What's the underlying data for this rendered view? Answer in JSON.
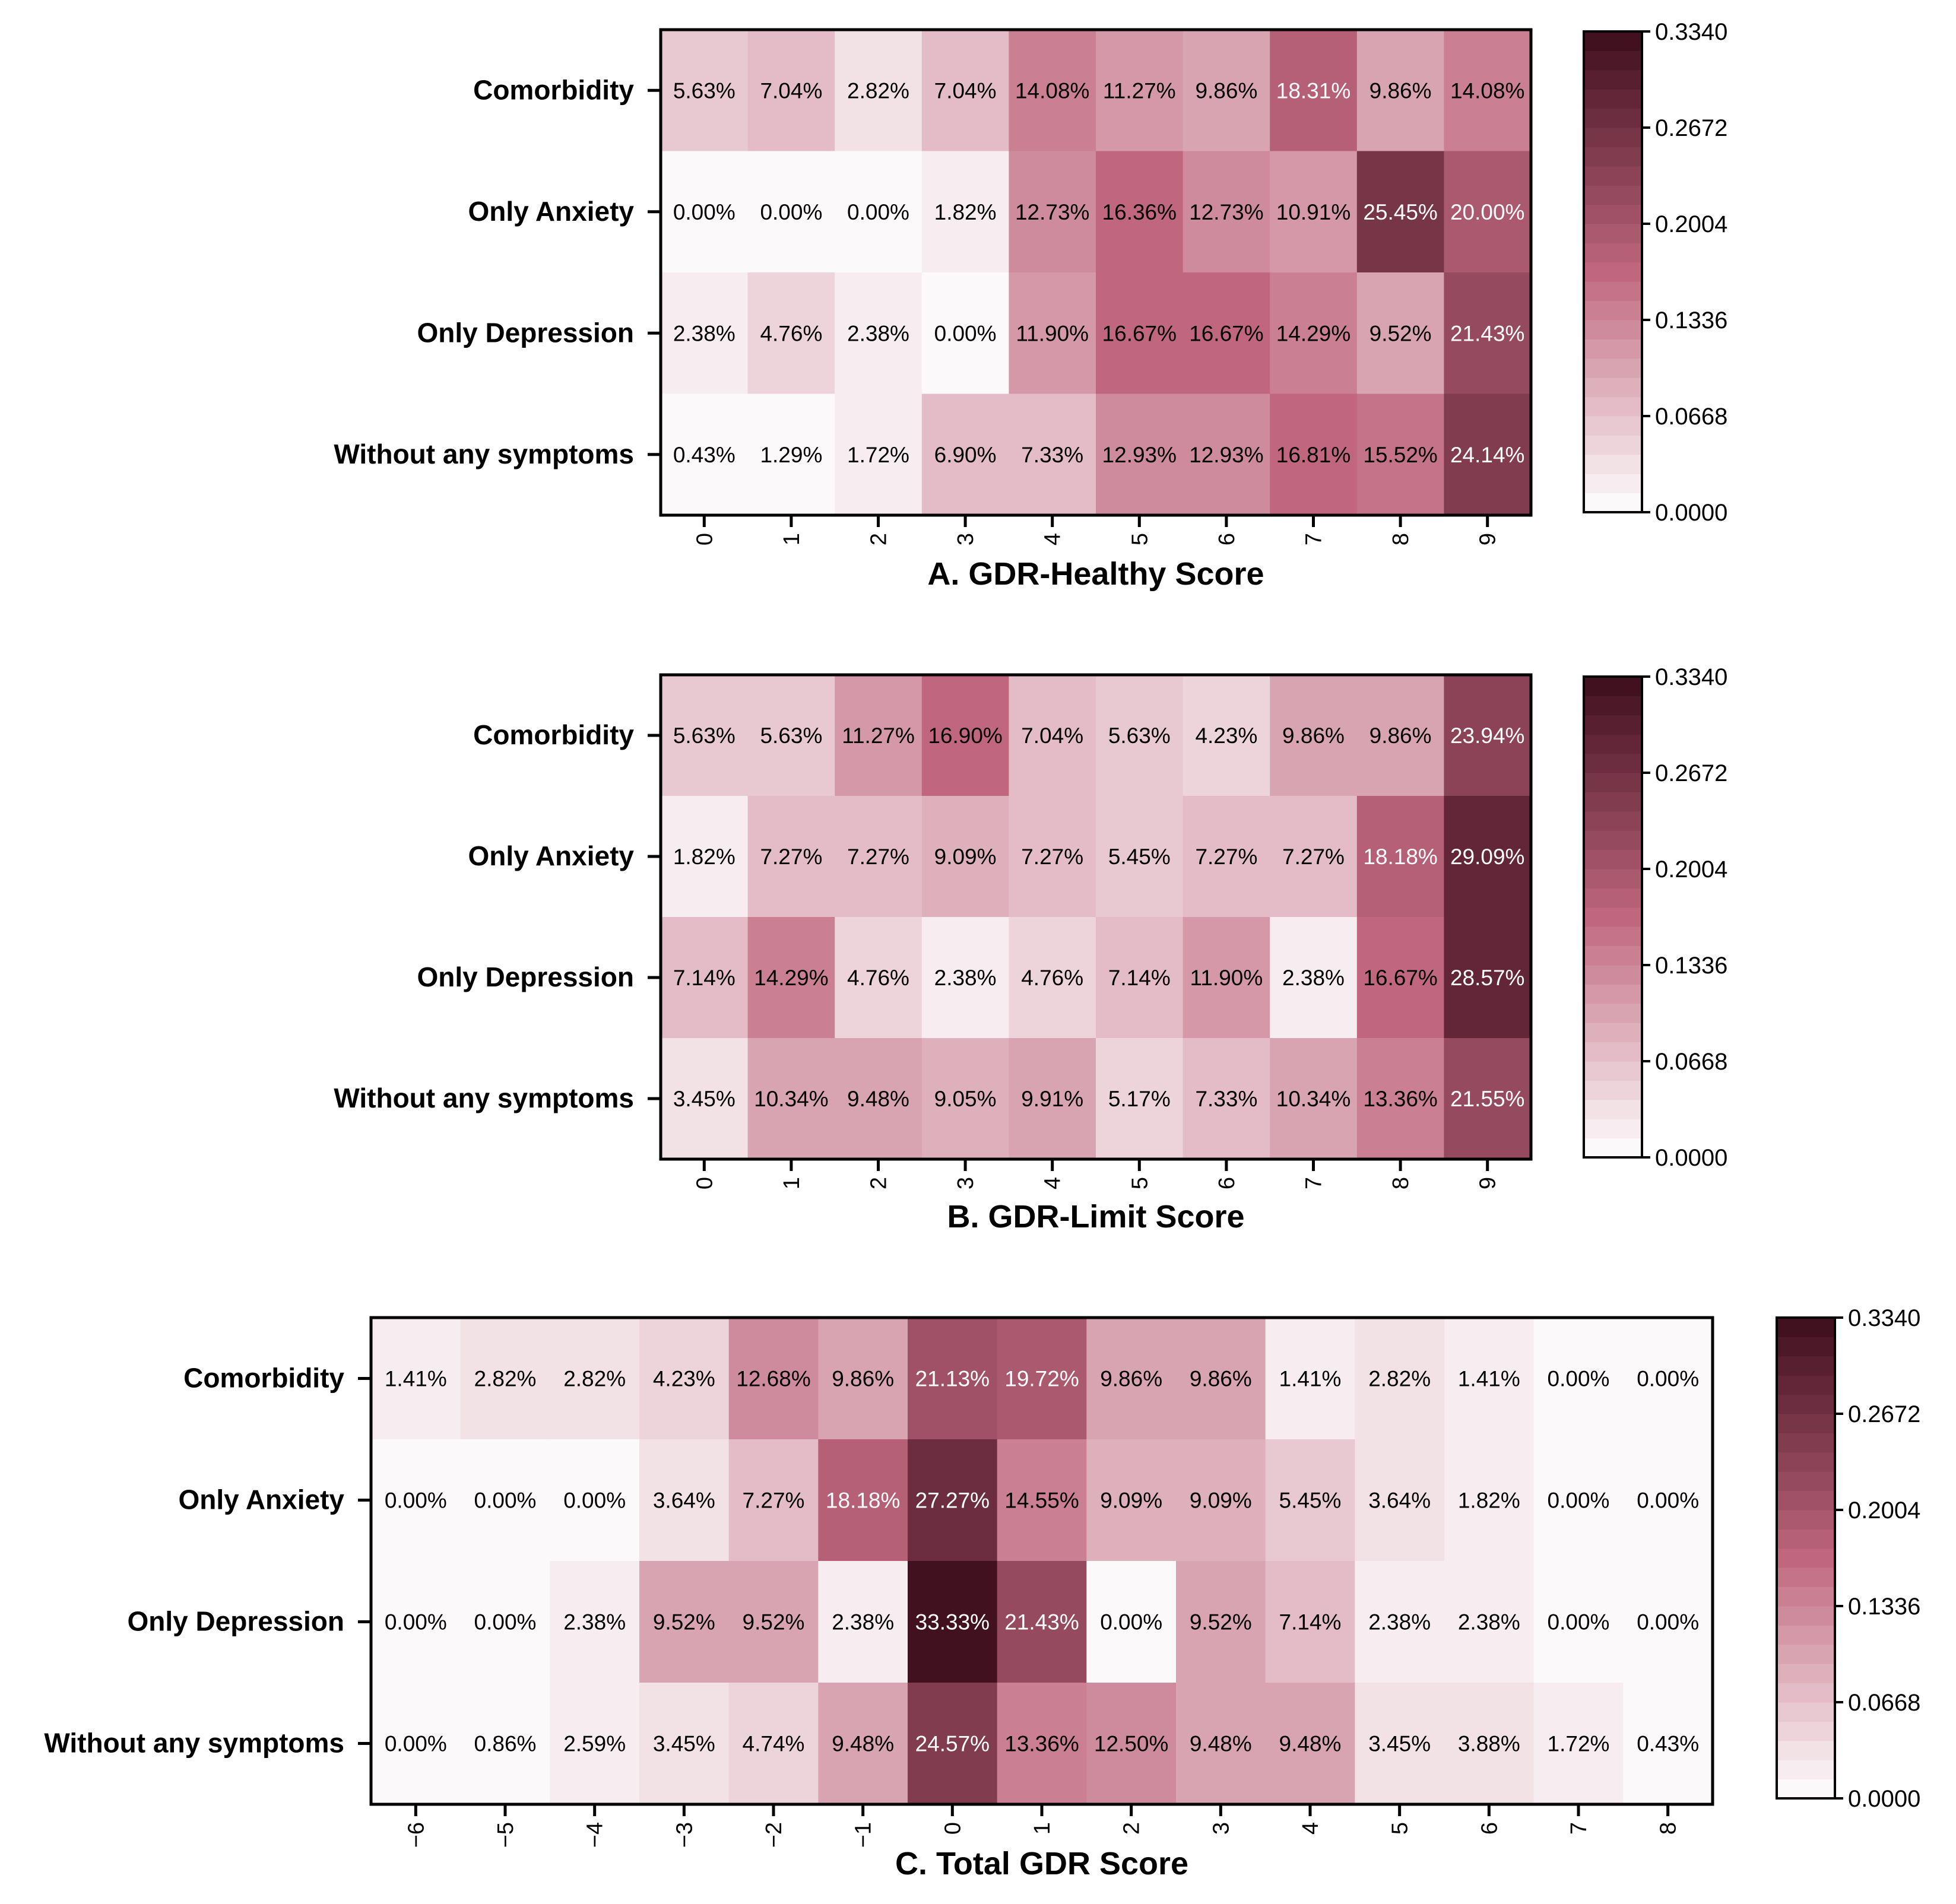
{
  "figure": {
    "description_free": true,
    "colormap": {
      "min": 0.0,
      "max": 0.334,
      "steps": 25,
      "low_color": "#ffffff",
      "mid_color": "#c0677f",
      "high_color": "#3d0d1c"
    }
  },
  "chart_data": [
    {
      "type": "heatmap",
      "title": "A. GDR-Healthy Score",
      "rows": [
        "Comorbidity",
        "Only Anxiety",
        "Only Depression",
        "Without any symptoms"
      ],
      "columns": [
        "0",
        "1",
        "2",
        "3",
        "4",
        "5",
        "6",
        "7",
        "8",
        "9"
      ],
      "values": [
        [
          5.63,
          7.04,
          2.82,
          7.04,
          14.08,
          11.27,
          9.86,
          18.31,
          9.86,
          14.08
        ],
        [
          0.0,
          0.0,
          0.0,
          1.82,
          12.73,
          16.36,
          12.73,
          10.91,
          25.45,
          20.0
        ],
        [
          2.38,
          4.76,
          2.38,
          0.0,
          11.9,
          16.67,
          16.67,
          14.29,
          9.52,
          21.43
        ],
        [
          0.43,
          1.29,
          1.72,
          6.9,
          7.33,
          12.93,
          12.93,
          16.81,
          15.52,
          24.14
        ]
      ],
      "value_suffix": "%",
      "colorbar_ticks": [
        "0.3340",
        "0.2672",
        "0.2004",
        "0.1336",
        "0.0668",
        "0.0000"
      ]
    },
    {
      "type": "heatmap",
      "title": "B. GDR-Limit Score",
      "rows": [
        "Comorbidity",
        "Only Anxiety",
        "Only Depression",
        "Without any symptoms"
      ],
      "columns": [
        "0",
        "1",
        "2",
        "3",
        "4",
        "5",
        "6",
        "7",
        "8",
        "9"
      ],
      "values": [
        [
          5.63,
          5.63,
          11.27,
          16.9,
          7.04,
          5.63,
          4.23,
          9.86,
          9.86,
          23.94
        ],
        [
          1.82,
          7.27,
          7.27,
          9.09,
          7.27,
          5.45,
          7.27,
          7.27,
          18.18,
          29.09
        ],
        [
          7.14,
          14.29,
          4.76,
          2.38,
          4.76,
          7.14,
          11.9,
          2.38,
          16.67,
          28.57
        ],
        [
          3.45,
          10.34,
          9.48,
          9.05,
          9.91,
          5.17,
          7.33,
          10.34,
          13.36,
          21.55
        ]
      ],
      "value_suffix": "%",
      "colorbar_ticks": [
        "0.3340",
        "0.2672",
        "0.2004",
        "0.1336",
        "0.0668",
        "0.0000"
      ]
    },
    {
      "type": "heatmap",
      "title": "C. Total GDR Score",
      "rows": [
        "Comorbidity",
        "Only Anxiety",
        "Only Depression",
        "Without any symptoms"
      ],
      "columns": [
        "−6",
        "−5",
        "−4",
        "−3",
        "−2",
        "−1",
        "0",
        "1",
        "2",
        "3",
        "4",
        "5",
        "6",
        "7",
        "8"
      ],
      "values": [
        [
          1.41,
          2.82,
          2.82,
          4.23,
          12.68,
          9.86,
          21.13,
          19.72,
          9.86,
          9.86,
          1.41,
          2.82,
          1.41,
          0.0,
          0.0
        ],
        [
          0.0,
          0.0,
          0.0,
          3.64,
          7.27,
          18.18,
          27.27,
          14.55,
          9.09,
          9.09,
          5.45,
          3.64,
          1.82,
          0.0,
          0.0
        ],
        [
          0.0,
          0.0,
          2.38,
          9.52,
          9.52,
          2.38,
          33.33,
          21.43,
          0.0,
          9.52,
          7.14,
          2.38,
          2.38,
          0.0,
          0.0
        ],
        [
          0.0,
          0.86,
          2.59,
          3.45,
          4.74,
          9.48,
          24.57,
          13.36,
          12.5,
          9.48,
          9.48,
          3.45,
          3.88,
          1.72,
          0.43
        ]
      ],
      "value_suffix": "%",
      "colorbar_ticks": [
        "0.3340",
        "0.2672",
        "0.2004",
        "0.1336",
        "0.0668",
        "0.0000"
      ]
    }
  ]
}
